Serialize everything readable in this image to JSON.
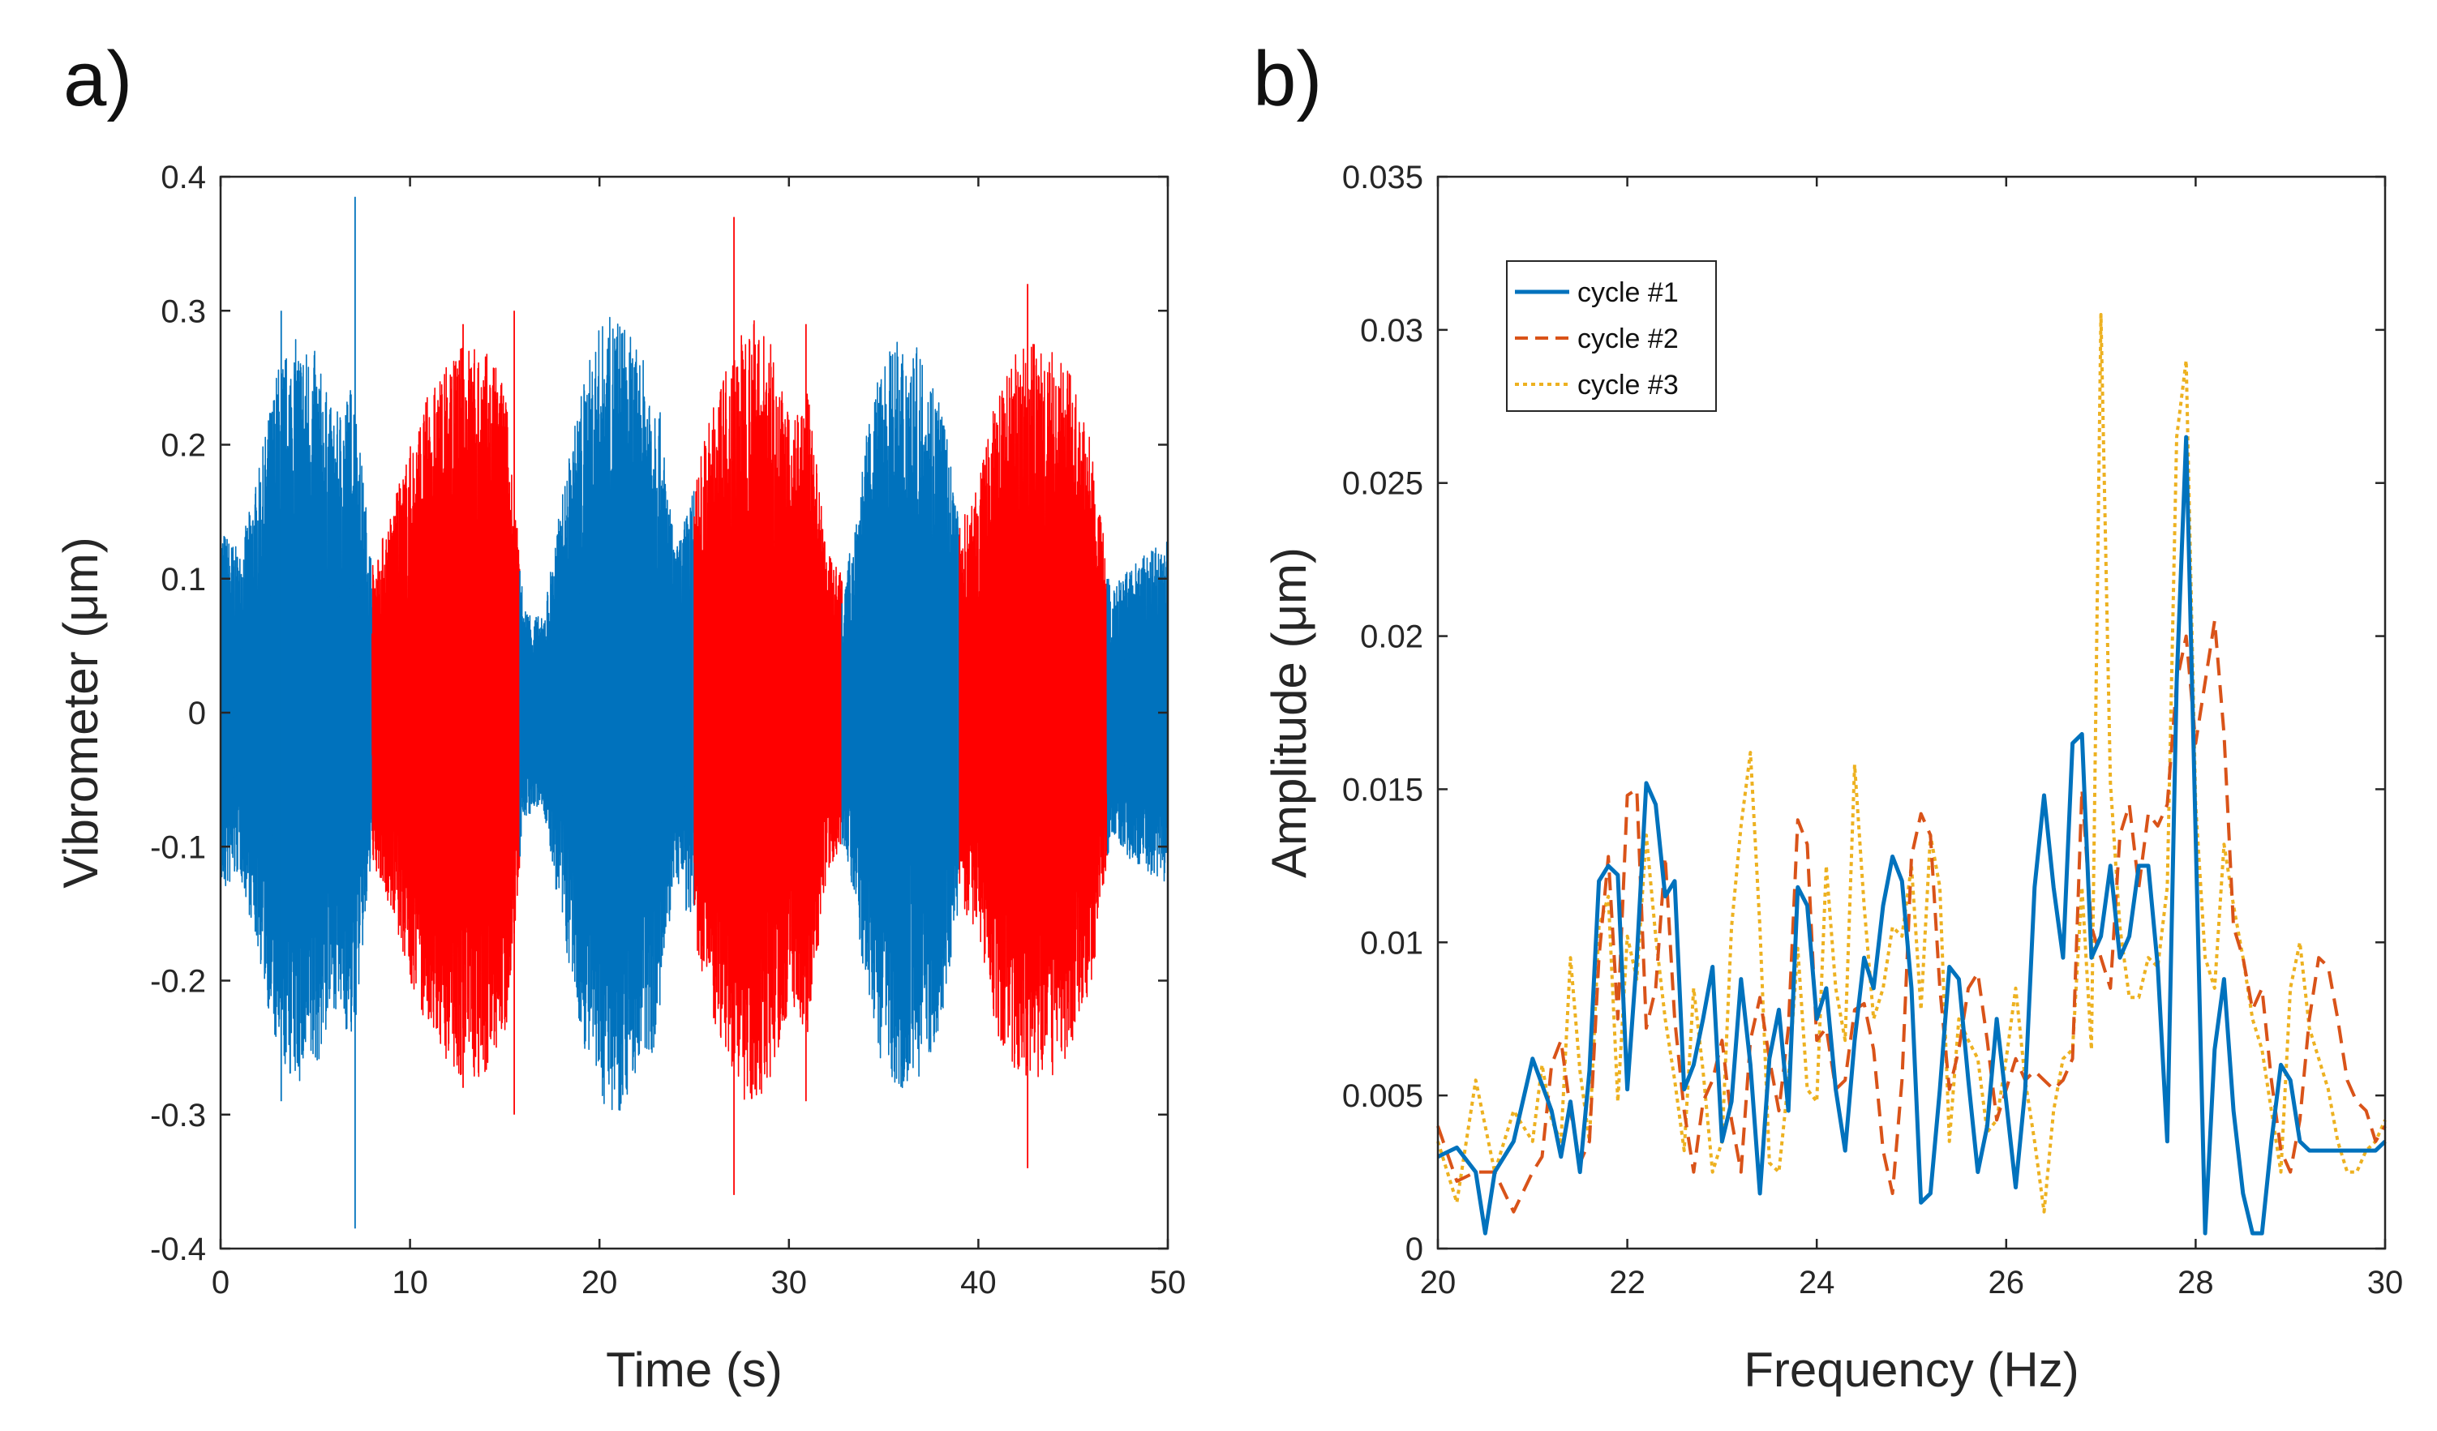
{
  "chart_data": [
    {
      "panel_label": "a)",
      "type": "line",
      "xlabel": "Time (s)",
      "ylabel": "Vibrometer (μm)",
      "xlim": [
        0,
        50
      ],
      "ylim": [
        -0.4,
        0.4
      ],
      "xticks": [
        0,
        10,
        20,
        30,
        40,
        50
      ],
      "xtick_labels": [
        "0",
        "10",
        "20",
        "30",
        "40",
        "50"
      ],
      "yticks": [
        -0.4,
        -0.3,
        -0.2,
        -0.1,
        0,
        0.1,
        0.2,
        0.3,
        0.4
      ],
      "ytick_labels": [
        "-0.4",
        "-0.3",
        "-0.2",
        "-0.1",
        "0",
        "0.1",
        "0.2",
        "0.3",
        "0.4"
      ],
      "grid": false,
      "segments": [
        {
          "x_start": 0,
          "x_end": 8,
          "color": "#0072BD"
        },
        {
          "x_start": 8,
          "x_end": 15.8,
          "color": "#FF0000"
        },
        {
          "x_start": 15.8,
          "x_end": 25,
          "color": "#0072BD"
        },
        {
          "x_start": 25,
          "x_end": 32.8,
          "color": "#FF0000"
        },
        {
          "x_start": 32.8,
          "x_end": 39,
          "color": "#0072BD"
        },
        {
          "x_start": 39,
          "x_end": 46.8,
          "color": "#FF0000"
        },
        {
          "x_start": 46.8,
          "x_end": 50,
          "color": "#0072BD"
        }
      ],
      "envelope": {
        "t": [
          0,
          1,
          2,
          3,
          4,
          5,
          6,
          7,
          8,
          9,
          10,
          11,
          12,
          13,
          14,
          15,
          16,
          17,
          18,
          19,
          20,
          21,
          22,
          23,
          24,
          25,
          26,
          27,
          28,
          29,
          30,
          31,
          32,
          33,
          34,
          35,
          36,
          37,
          38,
          39,
          40,
          41,
          42,
          43,
          44,
          45,
          46,
          47,
          48,
          49,
          50
        ],
        "amp": [
          0.14,
          0.12,
          0.18,
          0.26,
          0.28,
          0.27,
          0.22,
          0.25,
          0.11,
          0.15,
          0.2,
          0.24,
          0.26,
          0.28,
          0.27,
          0.25,
          0.08,
          0.07,
          0.16,
          0.24,
          0.29,
          0.3,
          0.27,
          0.25,
          0.12,
          0.17,
          0.23,
          0.27,
          0.3,
          0.28,
          0.22,
          0.24,
          0.12,
          0.1,
          0.2,
          0.27,
          0.28,
          0.27,
          0.24,
          0.14,
          0.17,
          0.24,
          0.27,
          0.28,
          0.27,
          0.25,
          0.2,
          0.09,
          0.11,
          0.12,
          0.13
        ]
      },
      "spikes": [
        {
          "t": 3.2,
          "max": 0.3,
          "min": -0.29
        },
        {
          "t": 7.1,
          "max": 0.385,
          "min": -0.385
        },
        {
          "t": 12.8,
          "max": 0.29,
          "min": -0.28
        },
        {
          "t": 15.5,
          "max": 0.3,
          "min": -0.3
        },
        {
          "t": 27.1,
          "max": 0.37,
          "min": -0.36
        },
        {
          "t": 30.9,
          "max": 0.29,
          "min": -0.29
        },
        {
          "t": 42.6,
          "max": 0.32,
          "min": -0.34
        }
      ]
    },
    {
      "panel_label": "b)",
      "type": "line",
      "xlabel": "Frequency (Hz)",
      "ylabel": "Amplitude (μm)",
      "xlim": [
        20,
        30
      ],
      "ylim": [
        0,
        0.035
      ],
      "xticks": [
        20,
        22,
        24,
        26,
        28,
        30
      ],
      "xtick_labels": [
        "20",
        "22",
        "24",
        "26",
        "28",
        "30"
      ],
      "yticks": [
        0,
        0.005,
        0.01,
        0.015,
        0.02,
        0.025,
        0.03,
        0.035
      ],
      "ytick_labels": [
        "0",
        "0.005",
        "0.01",
        "0.015",
        "0.02",
        "0.025",
        "0.03",
        "0.035"
      ],
      "grid": false,
      "legend_position": "top-left",
      "series": [
        {
          "name": "cycle #1",
          "color": "#0072BD",
          "style": "solid",
          "x": [
            20,
            20.2,
            20.4,
            20.5,
            20.6,
            20.8,
            21,
            21.2,
            21.3,
            21.4,
            21.5,
            21.6,
            21.7,
            21.8,
            21.9,
            22,
            22.1,
            22.2,
            22.3,
            22.4,
            22.5,
            22.6,
            22.7,
            22.8,
            22.9,
            23.0,
            23.1,
            23.2,
            23.3,
            23.4,
            23.5,
            23.6,
            23.7,
            23.8,
            23.9,
            24.0,
            24.1,
            24.2,
            24.3,
            24.4,
            24.5,
            24.6,
            24.7,
            24.8,
            24.9,
            25.0,
            25.1,
            25.2,
            25.3,
            25.4,
            25.5,
            25.6,
            25.7,
            25.8,
            25.9,
            26.0,
            26.1,
            26.2,
            26.3,
            26.4,
            26.5,
            26.6,
            26.7,
            26.8,
            26.9,
            27.0,
            27.1,
            27.2,
            27.3,
            27.4,
            27.5,
            27.6,
            27.7,
            27.8,
            27.9,
            28.0,
            28.1,
            28.2,
            28.3,
            28.4,
            28.5,
            28.6,
            28.7,
            28.8,
            28.9,
            29.0,
            29.1,
            29.2,
            29.3,
            29.4,
            29.5,
            29.6,
            29.7,
            29.8,
            29.9,
            30.0
          ],
          "y": [
            0.003,
            0.0033,
            0.0025,
            0.0005,
            0.0025,
            0.0035,
            0.0062,
            0.0045,
            0.003,
            0.0048,
            0.0025,
            0.0058,
            0.012,
            0.0125,
            0.0122,
            0.0052,
            0.0095,
            0.0152,
            0.0145,
            0.0115,
            0.012,
            0.0052,
            0.006,
            0.0075,
            0.0092,
            0.0035,
            0.0048,
            0.0088,
            0.006,
            0.0018,
            0.0062,
            0.0078,
            0.0045,
            0.0118,
            0.0112,
            0.0075,
            0.0085,
            0.0052,
            0.0032,
            0.0068,
            0.0095,
            0.0085,
            0.0112,
            0.0128,
            0.012,
            0.0085,
            0.0015,
            0.0018,
            0.0052,
            0.0092,
            0.0088,
            0.0055,
            0.0025,
            0.004,
            0.0075,
            0.0048,
            0.002,
            0.0052,
            0.0118,
            0.0148,
            0.0118,
            0.0095,
            0.0165,
            0.0168,
            0.0095,
            0.0102,
            0.0125,
            0.0095,
            0.0102,
            0.0125,
            0.0125,
            0.0092,
            0.0035,
            0.0185,
            0.0265,
            0.0135,
            0.0005,
            0.0065,
            0.0088,
            0.0045,
            0.0018,
            0.0005,
            0.0005,
            0.0035,
            0.006,
            0.0055,
            0.0035,
            0.0032,
            0.0032,
            0.0032,
            0.0032,
            0.0032,
            0.0032,
            0.0032,
            0.0032,
            0.0035
          ]
        },
        {
          "name": "cycle #2",
          "color": "#D95319",
          "style": "dashed",
          "x": [
            20,
            20.2,
            20.4,
            20.6,
            20.8,
            21,
            21.1,
            21.2,
            21.3,
            21.4,
            21.5,
            21.6,
            21.7,
            21.8,
            21.9,
            22.0,
            22.1,
            22.2,
            22.3,
            22.4,
            22.5,
            22.6,
            22.7,
            22.8,
            22.9,
            23.0,
            23.1,
            23.2,
            23.3,
            23.4,
            23.5,
            23.6,
            23.7,
            23.8,
            23.9,
            24.0,
            24.1,
            24.2,
            24.3,
            24.4,
            24.5,
            24.6,
            24.7,
            24.8,
            24.9,
            25.0,
            25.1,
            25.2,
            25.3,
            25.4,
            25.5,
            25.6,
            25.7,
            25.8,
            25.9,
            26.0,
            26.1,
            26.2,
            26.3,
            26.4,
            26.5,
            26.6,
            26.7,
            26.8,
            26.9,
            27.0,
            27.1,
            27.2,
            27.3,
            27.4,
            27.5,
            27.6,
            27.7,
            27.8,
            27.9,
            28.0,
            28.1,
            28.2,
            28.3,
            28.4,
            28.5,
            28.6,
            28.7,
            28.8,
            28.9,
            29.0,
            29.1,
            29.2,
            29.3,
            29.4,
            29.5,
            29.6,
            29.7,
            29.8,
            29.9,
            30.0
          ],
          "y": [
            0.004,
            0.0022,
            0.0025,
            0.0025,
            0.0012,
            0.0025,
            0.003,
            0.006,
            0.0068,
            0.0045,
            0.0028,
            0.0035,
            0.0095,
            0.0128,
            0.0075,
            0.0148,
            0.015,
            0.0072,
            0.0085,
            0.0128,
            0.0075,
            0.0045,
            0.0025,
            0.0048,
            0.0055,
            0.0068,
            0.0042,
            0.0025,
            0.0068,
            0.0082,
            0.0062,
            0.0045,
            0.0072,
            0.014,
            0.0132,
            0.0068,
            0.0072,
            0.0052,
            0.0055,
            0.0078,
            0.008,
            0.0065,
            0.0032,
            0.0018,
            0.0055,
            0.0128,
            0.0142,
            0.0135,
            0.0085,
            0.0052,
            0.0065,
            0.0085,
            0.009,
            0.0068,
            0.0042,
            0.0052,
            0.0062,
            0.0055,
            0.0058,
            0.0055,
            0.0052,
            0.0055,
            0.0062,
            0.015,
            0.0105,
            0.0095,
            0.0085,
            0.0135,
            0.0145,
            0.0118,
            0.0142,
            0.0138,
            0.0145,
            0.0185,
            0.02,
            0.0165,
            0.0185,
            0.0205,
            0.0168,
            0.0105,
            0.0095,
            0.0078,
            0.0085,
            0.0055,
            0.0032,
            0.0025,
            0.0042,
            0.0075,
            0.0095,
            0.0092,
            0.0075,
            0.0055,
            0.0048,
            0.0045,
            0.0035,
            0.004
          ]
        },
        {
          "name": "cycle #3",
          "color": "#EDB120",
          "style": "dotted",
          "x": [
            20,
            20.2,
            20.4,
            20.6,
            20.8,
            21,
            21.1,
            21.2,
            21.3,
            21.4,
            21.5,
            21.6,
            21.7,
            21.8,
            21.9,
            22.0,
            22.1,
            22.2,
            22.3,
            22.4,
            22.5,
            22.6,
            22.7,
            22.8,
            22.9,
            23.0,
            23.1,
            23.2,
            23.3,
            23.4,
            23.5,
            23.6,
            23.7,
            23.8,
            23.9,
            24.0,
            24.1,
            24.2,
            24.3,
            24.4,
            24.5,
            24.6,
            24.7,
            24.8,
            24.9,
            25.0,
            25.1,
            25.2,
            25.3,
            25.4,
            25.5,
            25.6,
            25.7,
            25.8,
            25.9,
            26.0,
            26.1,
            26.2,
            26.3,
            26.4,
            26.5,
            26.6,
            26.7,
            26.8,
            26.9,
            27.0,
            27.1,
            27.2,
            27.3,
            27.4,
            27.5,
            27.6,
            27.7,
            27.8,
            27.9,
            28.0,
            28.1,
            28.2,
            28.3,
            28.4,
            28.5,
            28.6,
            28.7,
            28.8,
            28.9,
            29.0,
            29.1,
            29.2,
            29.3,
            29.4,
            29.5,
            29.6,
            29.7,
            29.8,
            29.9,
            30.0
          ],
          "y": [
            0.0035,
            0.0015,
            0.0055,
            0.0025,
            0.0045,
            0.0035,
            0.006,
            0.0042,
            0.0035,
            0.0095,
            0.0058,
            0.0035,
            0.0105,
            0.0115,
            0.0048,
            0.0102,
            0.0088,
            0.0135,
            0.0102,
            0.0075,
            0.0055,
            0.0032,
            0.0085,
            0.0058,
            0.0025,
            0.0035,
            0.0105,
            0.0138,
            0.0162,
            0.0105,
            0.0028,
            0.0025,
            0.0055,
            0.0098,
            0.0052,
            0.0048,
            0.0125,
            0.0085,
            0.0068,
            0.0158,
            0.0112,
            0.0075,
            0.0085,
            0.0105,
            0.0102,
            0.0125,
            0.0078,
            0.0135,
            0.0118,
            0.0035,
            0.0075,
            0.0068,
            0.0062,
            0.0038,
            0.0042,
            0.0062,
            0.0085,
            0.0055,
            0.0035,
            0.0012,
            0.0045,
            0.0062,
            0.0065,
            0.0118,
            0.0065,
            0.0305,
            0.0152,
            0.0105,
            0.0082,
            0.0082,
            0.0095,
            0.0092,
            0.0118,
            0.0265,
            0.029,
            0.0145,
            0.0095,
            0.0085,
            0.0132,
            0.0112,
            0.0095,
            0.0075,
            0.0065,
            0.0045,
            0.0025,
            0.0085,
            0.01,
            0.0072,
            0.0062,
            0.0052,
            0.0035,
            0.0025,
            0.0025,
            0.0032,
            0.0035,
            0.0042
          ]
        }
      ]
    }
  ]
}
